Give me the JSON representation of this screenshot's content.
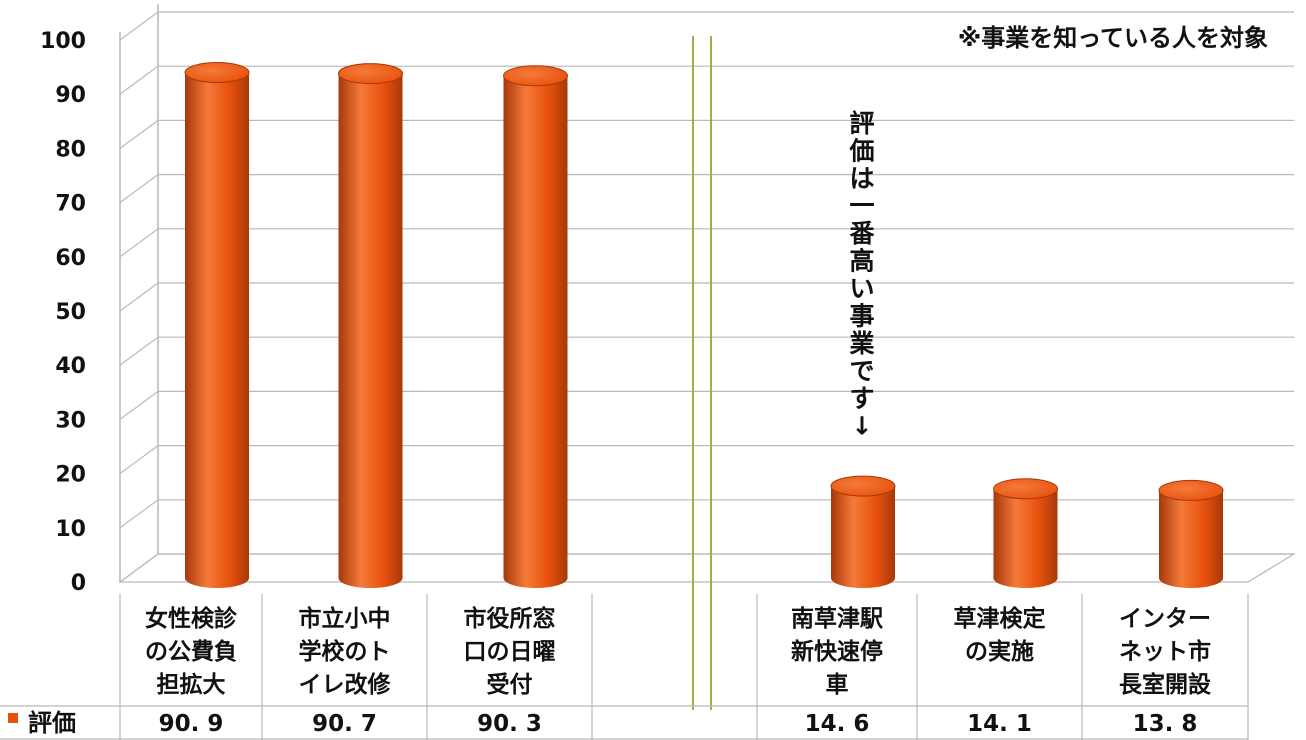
{
  "chart_data": {
    "type": "bar",
    "categories": [
      [
        "女性検診",
        "の公費負",
        "担拡大"
      ],
      [
        "市立小中",
        "学校のト",
        "イレ改修"
      ],
      [
        "市役所窓",
        "口の日曜",
        "受付"
      ],
      [],
      [
        "南草津駅",
        "新快速停",
        "車"
      ],
      [
        "草津検定",
        "の実施"
      ],
      [
        "インター",
        "ネット市",
        "長室開設"
      ]
    ],
    "series": [
      {
        "name": "評価",
        "values": [
          90.9,
          90.7,
          90.3,
          null,
          14.6,
          14.1,
          13.8
        ]
      }
    ],
    "data_labels": [
      "90. 9",
      "90. 7",
      "90. 3",
      "",
      "14. 6",
      "14. 1",
      "13. 8"
    ],
    "ylim": [
      0,
      100
    ],
    "yticks": [
      0,
      10,
      20,
      30,
      40,
      50,
      60,
      70,
      80,
      90,
      100
    ],
    "grid": true,
    "legend": "bottom-left",
    "annotations": {
      "note": "※事業を知っている人を対象",
      "vertical_callout": [
        "評",
        "価",
        "は",
        "一",
        "番",
        "高",
        "い",
        "事",
        "業",
        "で",
        "す",
        "↓"
      ]
    },
    "colors": {
      "bar": "#e8510c",
      "bar_dark": "#a8380a",
      "bar_light": "#f47a3a",
      "grid": "#b9b9b9",
      "divider": "#9bb04a"
    }
  }
}
